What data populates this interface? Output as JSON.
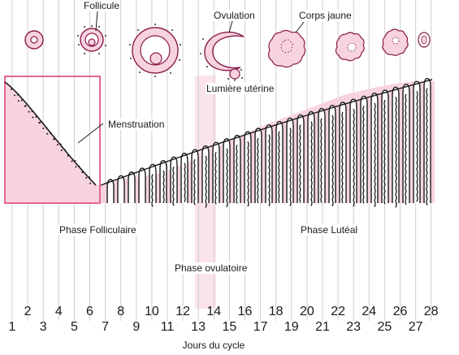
{
  "labels": {
    "follicle": "Follicule",
    "ovulation": "Ovulation",
    "corpus_luteum": "Corps jaune",
    "uterine_light": "Lumière utérine",
    "menstruation": "Menstruation",
    "follicular_phase": "Phase Folliculaire",
    "luteal_phase": "Phase Lutéal",
    "ovulatory_phase": "Phase ovulatoire",
    "x_axis_title": "Jours du cycle"
  },
  "days_top": [
    "2",
    "4",
    "6",
    "8",
    "10",
    "12",
    "14",
    "16",
    "18",
    "20",
    "22",
    "24",
    "26",
    "28"
  ],
  "days_bottom": [
    "1",
    "3",
    "5",
    "7",
    "9",
    "11",
    "13",
    "15",
    "17",
    "19",
    "21",
    "23",
    "25",
    "27"
  ],
  "colors": {
    "pink_fill": "#f7d3e0",
    "pink_stroke": "#e3659a",
    "ovulation_band": "#fbe3ec",
    "grid_line": "#cfcfcf",
    "ink": "#1a1a1a"
  }
}
